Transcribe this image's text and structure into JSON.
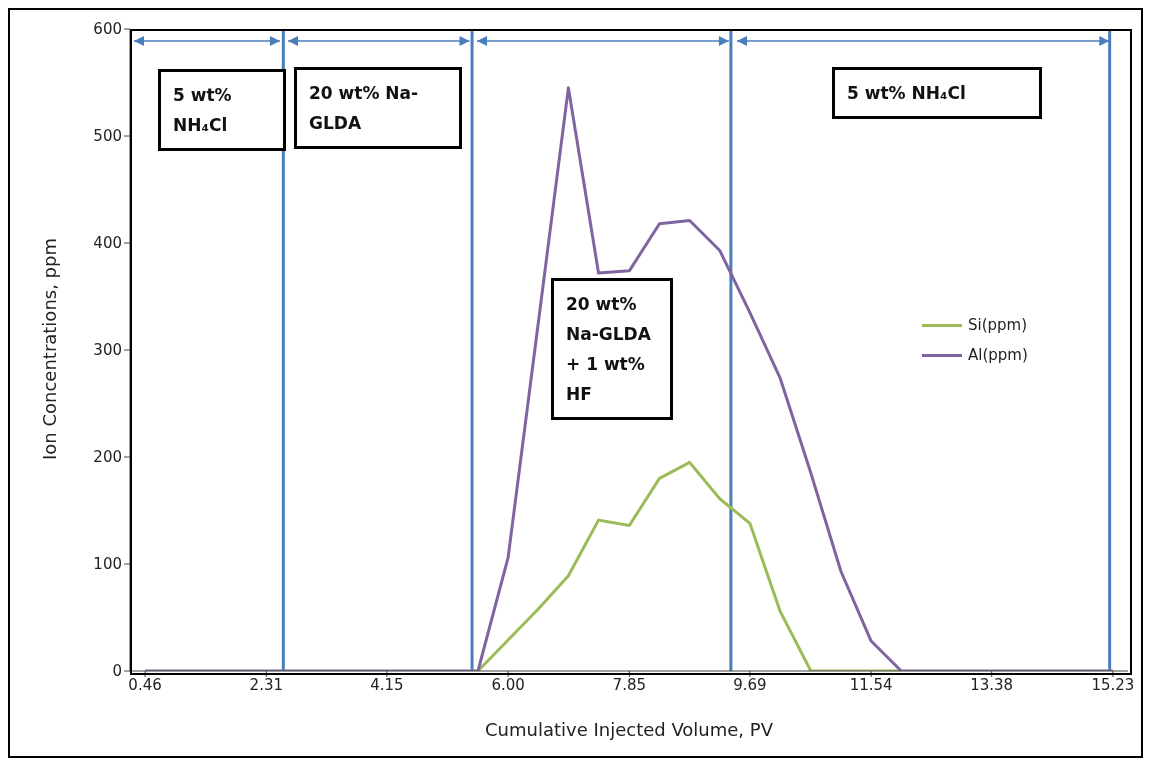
{
  "chart_data": {
    "type": "line",
    "xlabel": "Cumulative Injected Volume, PV",
    "ylabel": "Ion Concentrations, ppm",
    "x": [
      0.46,
      0.92,
      1.38,
      1.85,
      2.31,
      2.77,
      3.23,
      3.69,
      4.15,
      4.62,
      5.08,
      5.54,
      6.0,
      6.46,
      6.92,
      7.38,
      7.85,
      8.31,
      8.77,
      9.23,
      9.69,
      10.15,
      10.62,
      11.08,
      11.54,
      12.0,
      12.46,
      12.92,
      13.38,
      13.85,
      14.31,
      14.77,
      15.23
    ],
    "series": [
      {
        "name": "Si(ppm)",
        "color": "#9bbb59",
        "values": [
          null,
          null,
          null,
          null,
          null,
          null,
          null,
          null,
          null,
          null,
          null,
          0,
          29,
          58,
          89,
          141,
          136,
          180,
          195,
          161,
          138,
          56,
          0,
          0,
          0,
          0,
          null,
          null,
          null,
          null,
          null,
          null,
          null
        ]
      },
      {
        "name": "Al(ppm)",
        "color": "#8064a2",
        "values": [
          0,
          0,
          0,
          0,
          0,
          0,
          0,
          0,
          0,
          0,
          0,
          0,
          106,
          325,
          545,
          372,
          374,
          418,
          421,
          393,
          335,
          274,
          185,
          93,
          28,
          0,
          0,
          0,
          0,
          0,
          0,
          0,
          0
        ]
      }
    ],
    "xlim": [
      0.23,
      15.46
    ],
    "xticks": [
      0.46,
      2.31,
      4.15,
      {
        "value": 6,
        "label": "6.00"
      },
      7.85,
      9.69,
      11.54,
      13.38,
      15.23
    ],
    "ylim": [
      0,
      600
    ],
    "yticks": [
      0,
      100,
      200,
      300,
      400,
      500,
      600
    ],
    "ref_lines": [
      {
        "axis": "x",
        "value": 2.57,
        "color": "#4a7ebb"
      },
      {
        "axis": "x",
        "value": 5.45,
        "color": "#4a7ebb"
      },
      {
        "axis": "x",
        "value": 9.4,
        "color": "#4a7ebb"
      },
      {
        "axis": "x",
        "value": 15.18,
        "color": "#4a7ebb"
      }
    ],
    "annotations": [
      "5 wt% NH₄Cl",
      "20 wt% Na-GLDA",
      "20 wt% Na-GLDA + 1 wt% HF",
      "5 wt% NH₄Cl"
    ],
    "grid": false,
    "legend": "right",
    "marker": "none",
    "line_style": "solid"
  }
}
